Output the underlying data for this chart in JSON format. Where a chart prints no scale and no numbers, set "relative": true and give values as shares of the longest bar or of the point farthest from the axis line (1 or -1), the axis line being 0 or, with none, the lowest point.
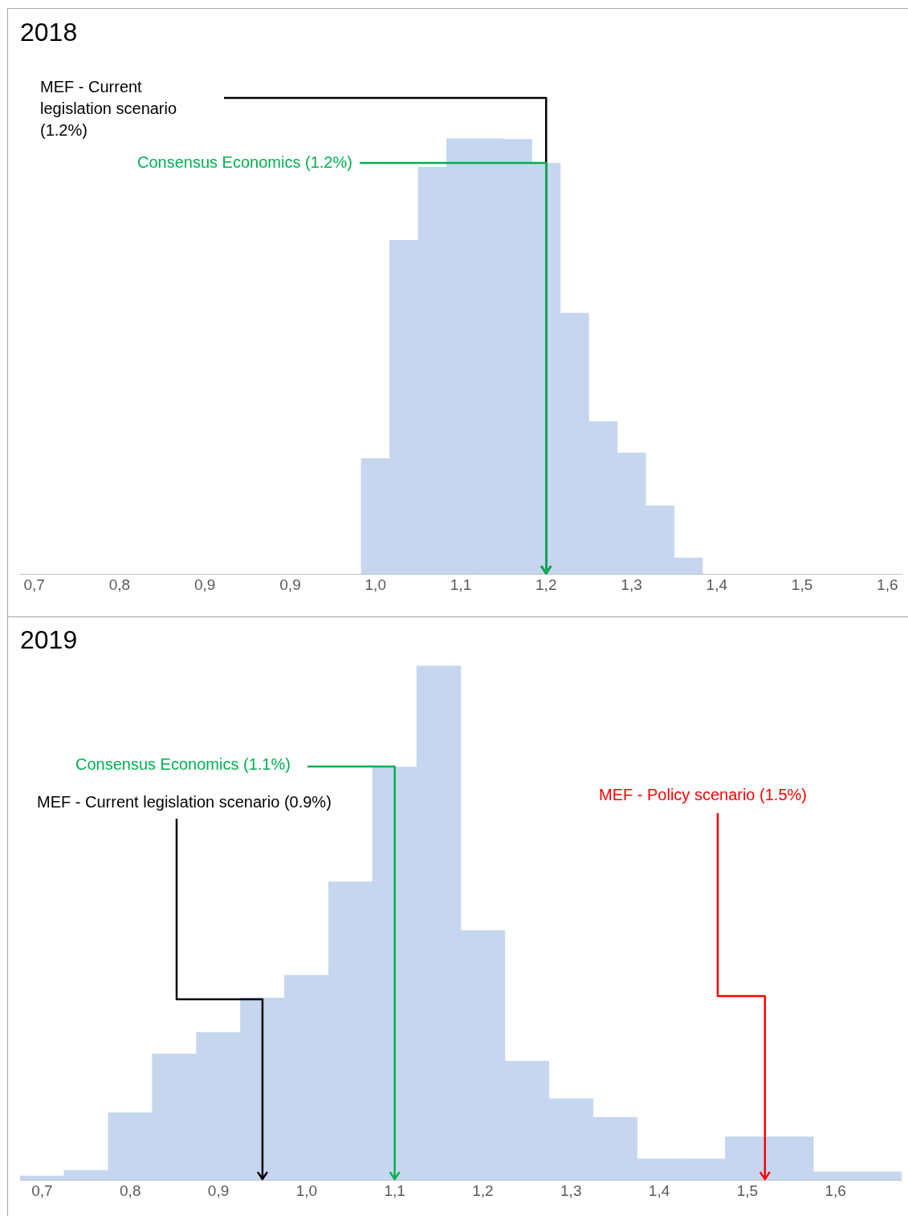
{
  "chart_data": [
    {
      "type": "bar",
      "title": "2018",
      "relative": true,
      "color": "#c6d6ef",
      "grid": false,
      "categories": [
        "0,7",
        null,
        null,
        "0,8",
        null,
        null,
        "0,9",
        null,
        null,
        "0,9",
        null,
        null,
        "1,0",
        null,
        null,
        "1,1",
        null,
        null,
        "1,2",
        null,
        null,
        "1,3",
        null,
        null,
        "1,4",
        null,
        null,
        "1,5",
        null,
        null,
        "1,6"
      ],
      "values": [
        null,
        null,
        null,
        null,
        null,
        null,
        null,
        null,
        null,
        null,
        null,
        null,
        0.265,
        0.766,
        0.934,
        1,
        1,
        0.998,
        0.943,
        0.599,
        0.35,
        0.278,
        0.157,
        0.037,
        null,
        null,
        null,
        null,
        null,
        null,
        null
      ],
      "ref_lines": [
        {
          "axis": "x",
          "value": "1,2",
          "label": "MEF - Current legislation scenario (1.2%)",
          "color": "#000000"
        },
        {
          "axis": "x",
          "value": "1,2",
          "label": "Consensus Economics (1.2%)",
          "color": "#00b050"
        }
      ]
    },
    {
      "type": "bar",
      "title": "2019",
      "relative": true,
      "color": "#c6d6ef",
      "grid": false,
      "x": [
        0.7,
        0.75,
        0.8,
        0.85,
        0.9,
        0.95,
        1.0,
        1.05,
        1.1,
        1.15,
        1.2,
        1.25,
        1.3,
        1.35,
        1.4,
        1.45,
        1.5,
        1.55,
        1.6,
        1.65
      ],
      "values": [
        0.008,
        0.019,
        0.131,
        0.245,
        0.287,
        0.354,
        0.398,
        0.58,
        0.803,
        1,
        0.485,
        0.231,
        0.158,
        0.122,
        0.041,
        0.041,
        0.084,
        0.084,
        0.016,
        0.016
      ],
      "xlim": [
        0.675,
        1.675
      ],
      "xticks": [
        {
          "value": 0.7,
          "label": "0,7"
        },
        {
          "value": 0.8,
          "label": "0,8"
        },
        {
          "value": 0.9,
          "label": "0,9"
        },
        {
          "value": 1.0,
          "label": "1,0"
        },
        {
          "value": 1.1,
          "label": "1,1"
        },
        {
          "value": 1.2,
          "label": "1,2"
        },
        {
          "value": 1.3,
          "label": "1,3"
        },
        {
          "value": 1.4,
          "label": "1,4"
        },
        {
          "value": 1.5,
          "label": "1,5"
        },
        {
          "value": 1.6,
          "label": "1,6"
        }
      ],
      "ref_lines": [
        {
          "axis": "x",
          "value": 1.1,
          "label": "Consensus Economics (1.1%)",
          "color": "#00b050"
        },
        {
          "axis": "x",
          "value": 0.95,
          "label": "MEF - Current legislation scenario (0.9%)",
          "color": "#000000"
        },
        {
          "axis": "x",
          "value": 1.52,
          "label": "MEF - Policy scenario (1.5%)",
          "color": "#ff0000"
        }
      ]
    }
  ]
}
